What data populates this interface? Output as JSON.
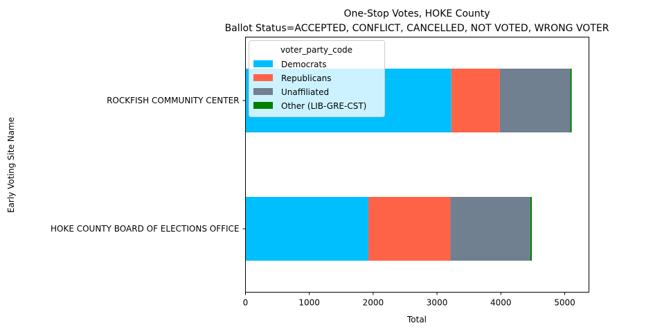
{
  "chart_data": {
    "type": "bar",
    "orientation": "horizontal",
    "stacked": true,
    "title": "One-Stop Votes, HOKE County",
    "subtitle": "Ballot Status=ACCEPTED, CONFLICT, CANCELLED, NOT VOTED, WRONG VOTER",
    "xlabel": "Total",
    "ylabel": "Early Voting Site Name",
    "xlim": [
      0,
      5380
    ],
    "xticks": [
      "0",
      "1000",
      "2000",
      "3000",
      "4000",
      "5000"
    ],
    "xtick_values": [
      0,
      1000,
      2000,
      3000,
      4000,
      5000
    ],
    "categories": [
      "HOKE COUNTY BOARD OF ELECTIONS OFFICE",
      "ROCKFISH COMMUNITY CENTER"
    ],
    "grid": false,
    "legend": {
      "title": "voter_party_code",
      "placement": "upper-left"
    },
    "series": [
      {
        "name": "Democrats",
        "color": "#00bfff",
        "values": [
          1925,
          3225
        ]
      },
      {
        "name": "Republicans",
        "color": "#ff6347",
        "values": [
          1285,
          760
        ]
      },
      {
        "name": "Unaffiliated",
        "color": "#708090",
        "values": [
          1250,
          1100
        ]
      },
      {
        "name": "Other (LIB-GRE-CST)",
        "color": "#008000",
        "values": [
          25,
          25
        ]
      }
    ]
  }
}
